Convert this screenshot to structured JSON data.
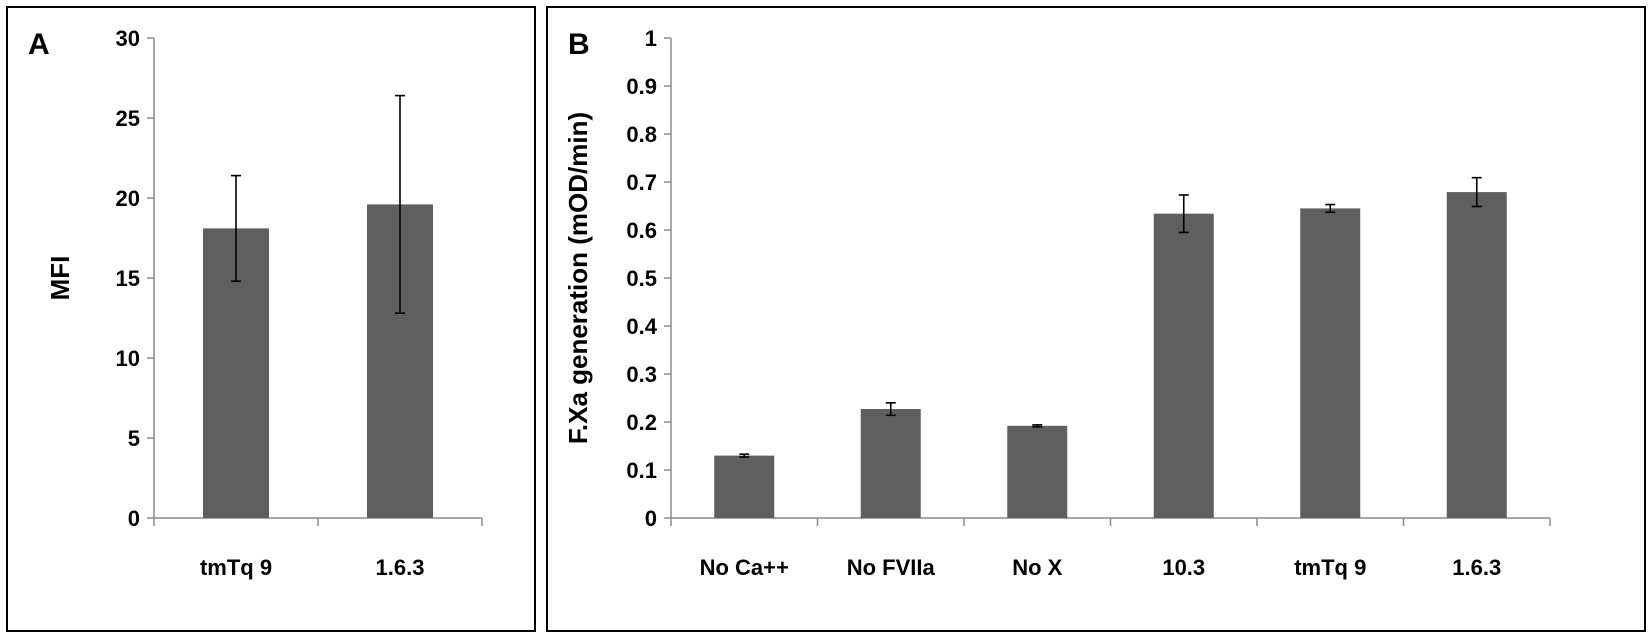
{
  "colors": {
    "bar": "#5f5f5f",
    "axis": "#8c8c8c",
    "errorbar": "#000000"
  },
  "chart_data": [
    {
      "panel": "A",
      "type": "bar",
      "title": "",
      "xlabel": "",
      "ylabel": "MFI",
      "ylim": [
        0,
        30
      ],
      "yticks": [
        0,
        5,
        10,
        15,
        20,
        25,
        30
      ],
      "categories": [
        "tmTq 9",
        "1.6.3"
      ],
      "values": [
        18.1,
        19.6
      ],
      "errors": [
        3.3,
        6.8
      ],
      "grid": false,
      "legend": "none"
    },
    {
      "panel": "B",
      "type": "bar",
      "title": "",
      "xlabel": "",
      "ylabel": "F.Xa generation (mOD/min)",
      "ylim": [
        0,
        1
      ],
      "yticks": [
        0,
        0.1,
        0.2,
        0.3,
        0.4,
        0.5,
        0.6,
        0.7,
        0.8,
        0.9,
        1
      ],
      "categories": [
        "No Ca++",
        "No FVIIa",
        "No X",
        "10.3",
        "tmTq 9",
        "1.6.3"
      ],
      "values": [
        0.13,
        0.227,
        0.192,
        0.634,
        0.645,
        0.679
      ],
      "errors": [
        0.003,
        0.013,
        0.002,
        0.039,
        0.008,
        0.03
      ],
      "grid": false,
      "legend": "none"
    }
  ]
}
